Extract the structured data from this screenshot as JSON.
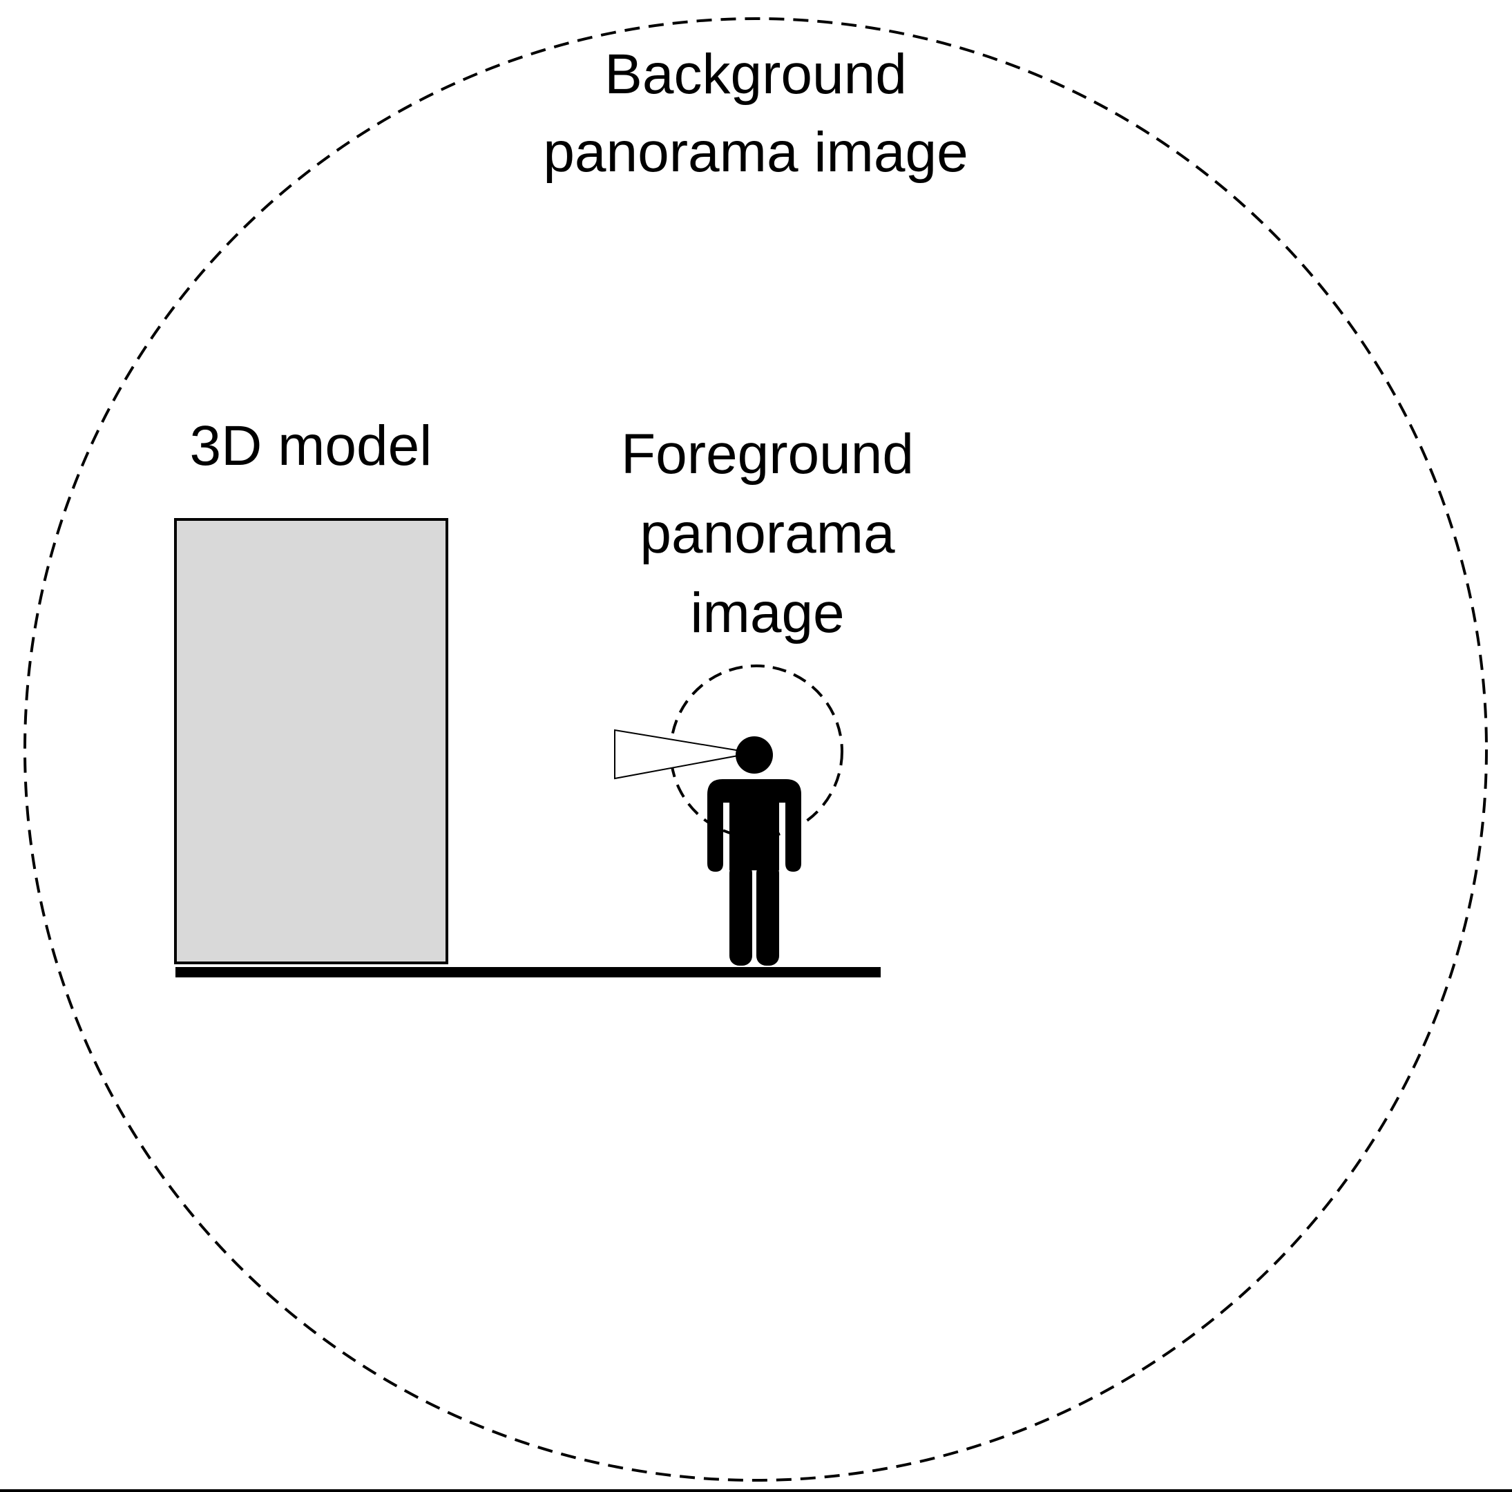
{
  "labels": {
    "background_line1": "Background",
    "background_line2": "panorama image",
    "model": "3D model",
    "foreground_line1": "Foreground",
    "foreground_line2": "panorama",
    "foreground_line3": "image"
  },
  "colors": {
    "stroke": "#000000",
    "model_fill": "#d9d9d9",
    "background": "#ffffff"
  },
  "icons": {
    "viewer": "person-icon",
    "view_frustum": "view-cone-icon"
  }
}
